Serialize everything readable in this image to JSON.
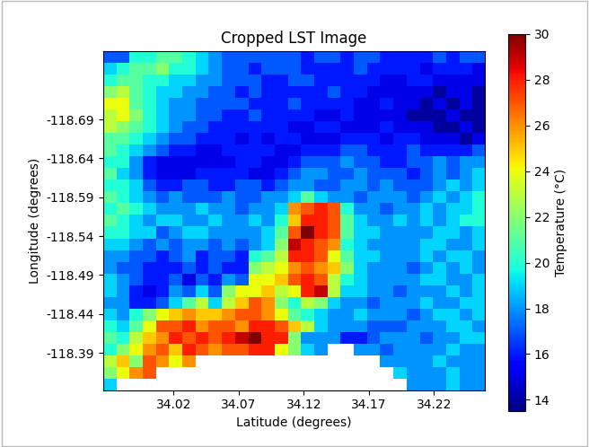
{
  "chart_data": {
    "type": "heatmap",
    "title": "Cropped LST Image",
    "xlabel": "Latitude (degrees)",
    "ylabel": "Longitude (degrees)",
    "xlim": [
      33.966,
      34.259
    ],
    "ylim": [
      -118.342,
      -118.778
    ],
    "xticks": [
      34.02,
      34.07,
      34.12,
      34.17,
      34.22
    ],
    "yticks": [
      -118.69,
      -118.64,
      -118.59,
      -118.54,
      -118.49,
      -118.44,
      -118.39
    ],
    "colorbar": {
      "label": "Temperature (°C)",
      "range": [
        13.5,
        30
      ],
      "ticks": [
        14,
        16,
        18,
        20,
        22,
        24,
        26,
        28,
        30
      ]
    },
    "cells": [
      [
        17,
        17,
        20,
        20,
        21,
        21,
        20,
        19,
        18,
        17,
        17,
        17,
        17,
        17,
        17,
        16,
        17,
        17,
        16,
        17,
        17,
        16,
        16,
        16,
        16,
        17,
        16,
        17,
        17
      ],
      [
        19,
        20,
        21,
        21,
        22,
        20,
        20,
        19,
        18,
        17,
        17,
        16,
        17,
        17,
        17,
        16,
        16,
        16,
        16,
        17,
        16,
        16,
        16,
        16,
        15,
        16,
        16,
        16,
        15
      ],
      [
        20,
        21,
        21,
        20,
        20,
        19,
        19,
        18,
        18,
        17,
        17,
        17,
        16,
        16,
        17,
        17,
        16,
        16,
        16,
        16,
        16,
        15,
        15,
        16,
        16,
        15,
        15,
        15,
        15
      ],
      [
        22,
        23,
        21,
        20,
        19,
        19,
        18,
        18,
        17,
        17,
        16,
        17,
        16,
        16,
        16,
        16,
        16,
        17,
        16,
        16,
        15,
        15,
        15,
        15,
        15,
        14,
        15,
        15,
        14
      ],
      [
        24,
        24,
        21,
        20,
        19,
        18,
        18,
        17,
        17,
        17,
        17,
        16,
        16,
        16,
        17,
        16,
        16,
        16,
        16,
        15,
        15,
        16,
        15,
        15,
        14,
        15,
        14,
        15,
        14
      ],
      [
        23,
        24,
        22,
        20,
        19,
        18,
        18,
        17,
        17,
        16,
        16,
        17,
        16,
        16,
        16,
        16,
        15,
        15,
        16,
        15,
        15,
        15,
        15,
        14,
        14,
        14,
        15,
        14,
        14
      ],
      [
        23,
        22,
        21,
        20,
        19,
        18,
        17,
        17,
        16,
        16,
        16,
        16,
        16,
        16,
        15,
        15,
        16,
        16,
        15,
        15,
        15,
        16,
        15,
        15,
        15,
        14,
        14,
        15,
        14
      ],
      [
        21,
        21,
        20,
        19,
        18,
        17,
        17,
        16,
        16,
        16,
        15,
        16,
        15,
        16,
        16,
        15,
        15,
        15,
        16,
        16,
        16,
        15,
        16,
        16,
        15,
        15,
        15,
        14,
        15
      ],
      [
        21,
        20,
        19,
        18,
        17,
        16,
        16,
        15,
        15,
        16,
        16,
        16,
        16,
        15,
        15,
        16,
        16,
        16,
        17,
        17,
        16,
        16,
        16,
        17,
        16,
        16,
        16,
        16,
        17
      ],
      [
        20,
        20,
        18,
        16,
        15,
        15,
        15,
        15,
        15,
        15,
        16,
        16,
        15,
        15,
        16,
        17,
        17,
        17,
        18,
        17,
        17,
        16,
        16,
        17,
        17,
        18,
        17,
        18,
        18
      ],
      [
        21,
        19,
        18,
        16,
        15,
        15,
        15,
        16,
        16,
        16,
        16,
        15,
        15,
        16,
        17,
        18,
        18,
        17,
        17,
        18,
        17,
        17,
        17,
        16,
        17,
        18,
        17,
        18,
        19
      ],
      [
        20,
        20,
        19,
        17,
        16,
        16,
        17,
        17,
        16,
        16,
        17,
        17,
        16,
        17,
        18,
        18,
        17,
        17,
        18,
        18,
        17,
        18,
        17,
        17,
        17,
        18,
        19,
        18,
        19
      ],
      [
        21,
        20,
        19,
        18,
        17,
        18,
        17,
        17,
        17,
        18,
        17,
        17,
        18,
        18,
        19,
        21,
        19,
        18,
        18,
        17,
        18,
        18,
        18,
        17,
        18,
        19,
        18,
        19,
        20
      ],
      [
        20,
        21,
        20,
        19,
        18,
        18,
        18,
        19,
        18,
        18,
        17,
        18,
        18,
        19,
        26,
        27,
        28,
        27,
        20,
        18,
        18,
        17,
        18,
        18,
        19,
        18,
        19,
        19,
        20
      ],
      [
        21,
        20,
        19,
        18,
        19,
        19,
        18,
        18,
        19,
        18,
        18,
        19,
        18,
        20,
        25,
        28,
        28,
        27,
        21,
        19,
        18,
        18,
        19,
        18,
        19,
        18,
        19,
        20,
        20
      ],
      [
        20,
        20,
        19,
        19,
        17,
        18,
        19,
        19,
        18,
        18,
        18,
        18,
        19,
        21,
        27,
        30,
        28,
        27,
        21,
        19,
        19,
        18,
        18,
        18,
        18,
        19,
        19,
        18,
        19
      ],
      [
        19,
        19,
        18,
        17,
        18,
        17,
        18,
        18,
        17,
        18,
        17,
        18,
        19,
        22,
        29,
        28,
        27,
        26,
        20,
        19,
        18,
        18,
        18,
        18,
        19,
        19,
        18,
        18,
        19
      ],
      [
        18,
        18,
        17,
        17,
        16,
        17,
        18,
        16,
        17,
        17,
        16,
        20,
        21,
        23,
        28,
        28,
        27,
        24,
        21,
        19,
        19,
        18,
        18,
        18,
        19,
        18,
        19,
        19,
        18
      ],
      [
        18,
        17,
        17,
        16,
        16,
        16,
        17,
        16,
        17,
        16,
        16,
        22,
        23,
        24,
        26,
        27,
        26,
        25,
        22,
        19,
        18,
        18,
        18,
        17,
        18,
        19,
        18,
        19,
        18
      ],
      [
        19,
        18,
        17,
        16,
        16,
        17,
        15,
        17,
        16,
        18,
        17,
        24,
        24,
        25,
        27,
        28,
        27,
        23,
        20,
        19,
        18,
        18,
        18,
        18,
        19,
        19,
        18,
        18,
        19
      ],
      [
        19,
        18,
        16,
        15,
        16,
        18,
        17,
        19,
        17,
        22,
        24,
        24,
        25,
        23,
        24,
        28,
        29,
        23,
        19,
        19,
        18,
        18,
        17,
        18,
        18,
        18,
        19,
        18,
        19
      ],
      [
        18,
        18,
        16,
        16,
        17,
        19,
        21,
        23,
        19,
        23,
        25,
        27,
        26,
        22,
        20,
        23,
        22,
        19,
        18,
        18,
        17,
        18,
        18,
        18,
        19,
        18,
        18,
        19,
        19
      ],
      [
        19,
        18,
        20,
        22,
        24,
        25,
        26,
        25,
        25,
        26,
        27,
        27,
        26,
        24,
        21,
        20,
        19,
        18,
        18,
        19,
        18,
        18,
        18,
        17,
        18,
        19,
        19,
        18,
        19
      ],
      [
        20,
        19,
        21,
        24,
        27,
        27,
        28,
        26,
        27,
        27,
        26,
        28,
        28,
        27,
        25,
        23,
        19,
        18,
        18,
        18,
        17,
        17,
        17,
        18,
        18,
        18,
        19,
        19,
        18
      ],
      [
        21,
        20,
        23,
        25,
        26,
        28,
        27,
        28,
        27,
        28,
        29,
        30,
        28,
        28,
        22,
        18,
        18,
        18,
        16,
        16,
        17,
        18,
        18,
        18,
        17,
        18,
        18,
        19,
        19
      ],
      [
        20,
        22,
        24,
        26,
        27,
        25,
        28,
        27,
        26,
        27,
        27,
        28,
        28,
        24,
        22,
        19,
        18,
        null,
        null,
        18,
        18,
        17,
        18,
        18,
        18,
        18,
        19,
        18,
        18
      ],
      [
        23,
        25,
        22,
        27,
        26,
        24,
        26,
        null,
        null,
        null,
        null,
        null,
        null,
        null,
        null,
        null,
        null,
        null,
        null,
        null,
        null,
        18,
        18,
        18,
        18,
        19,
        18,
        18,
        18
      ],
      [
        22,
        24,
        26,
        27,
        null,
        null,
        null,
        null,
        null,
        null,
        null,
        null,
        null,
        null,
        null,
        null,
        null,
        null,
        null,
        null,
        null,
        null,
        19,
        18,
        18,
        18,
        19,
        18,
        18
      ],
      [
        19,
        null,
        null,
        null,
        null,
        null,
        null,
        null,
        null,
        null,
        null,
        null,
        null,
        null,
        null,
        null,
        null,
        null,
        null,
        null,
        null,
        null,
        null,
        18,
        18,
        18,
        19,
        18,
        18
      ]
    ]
  }
}
